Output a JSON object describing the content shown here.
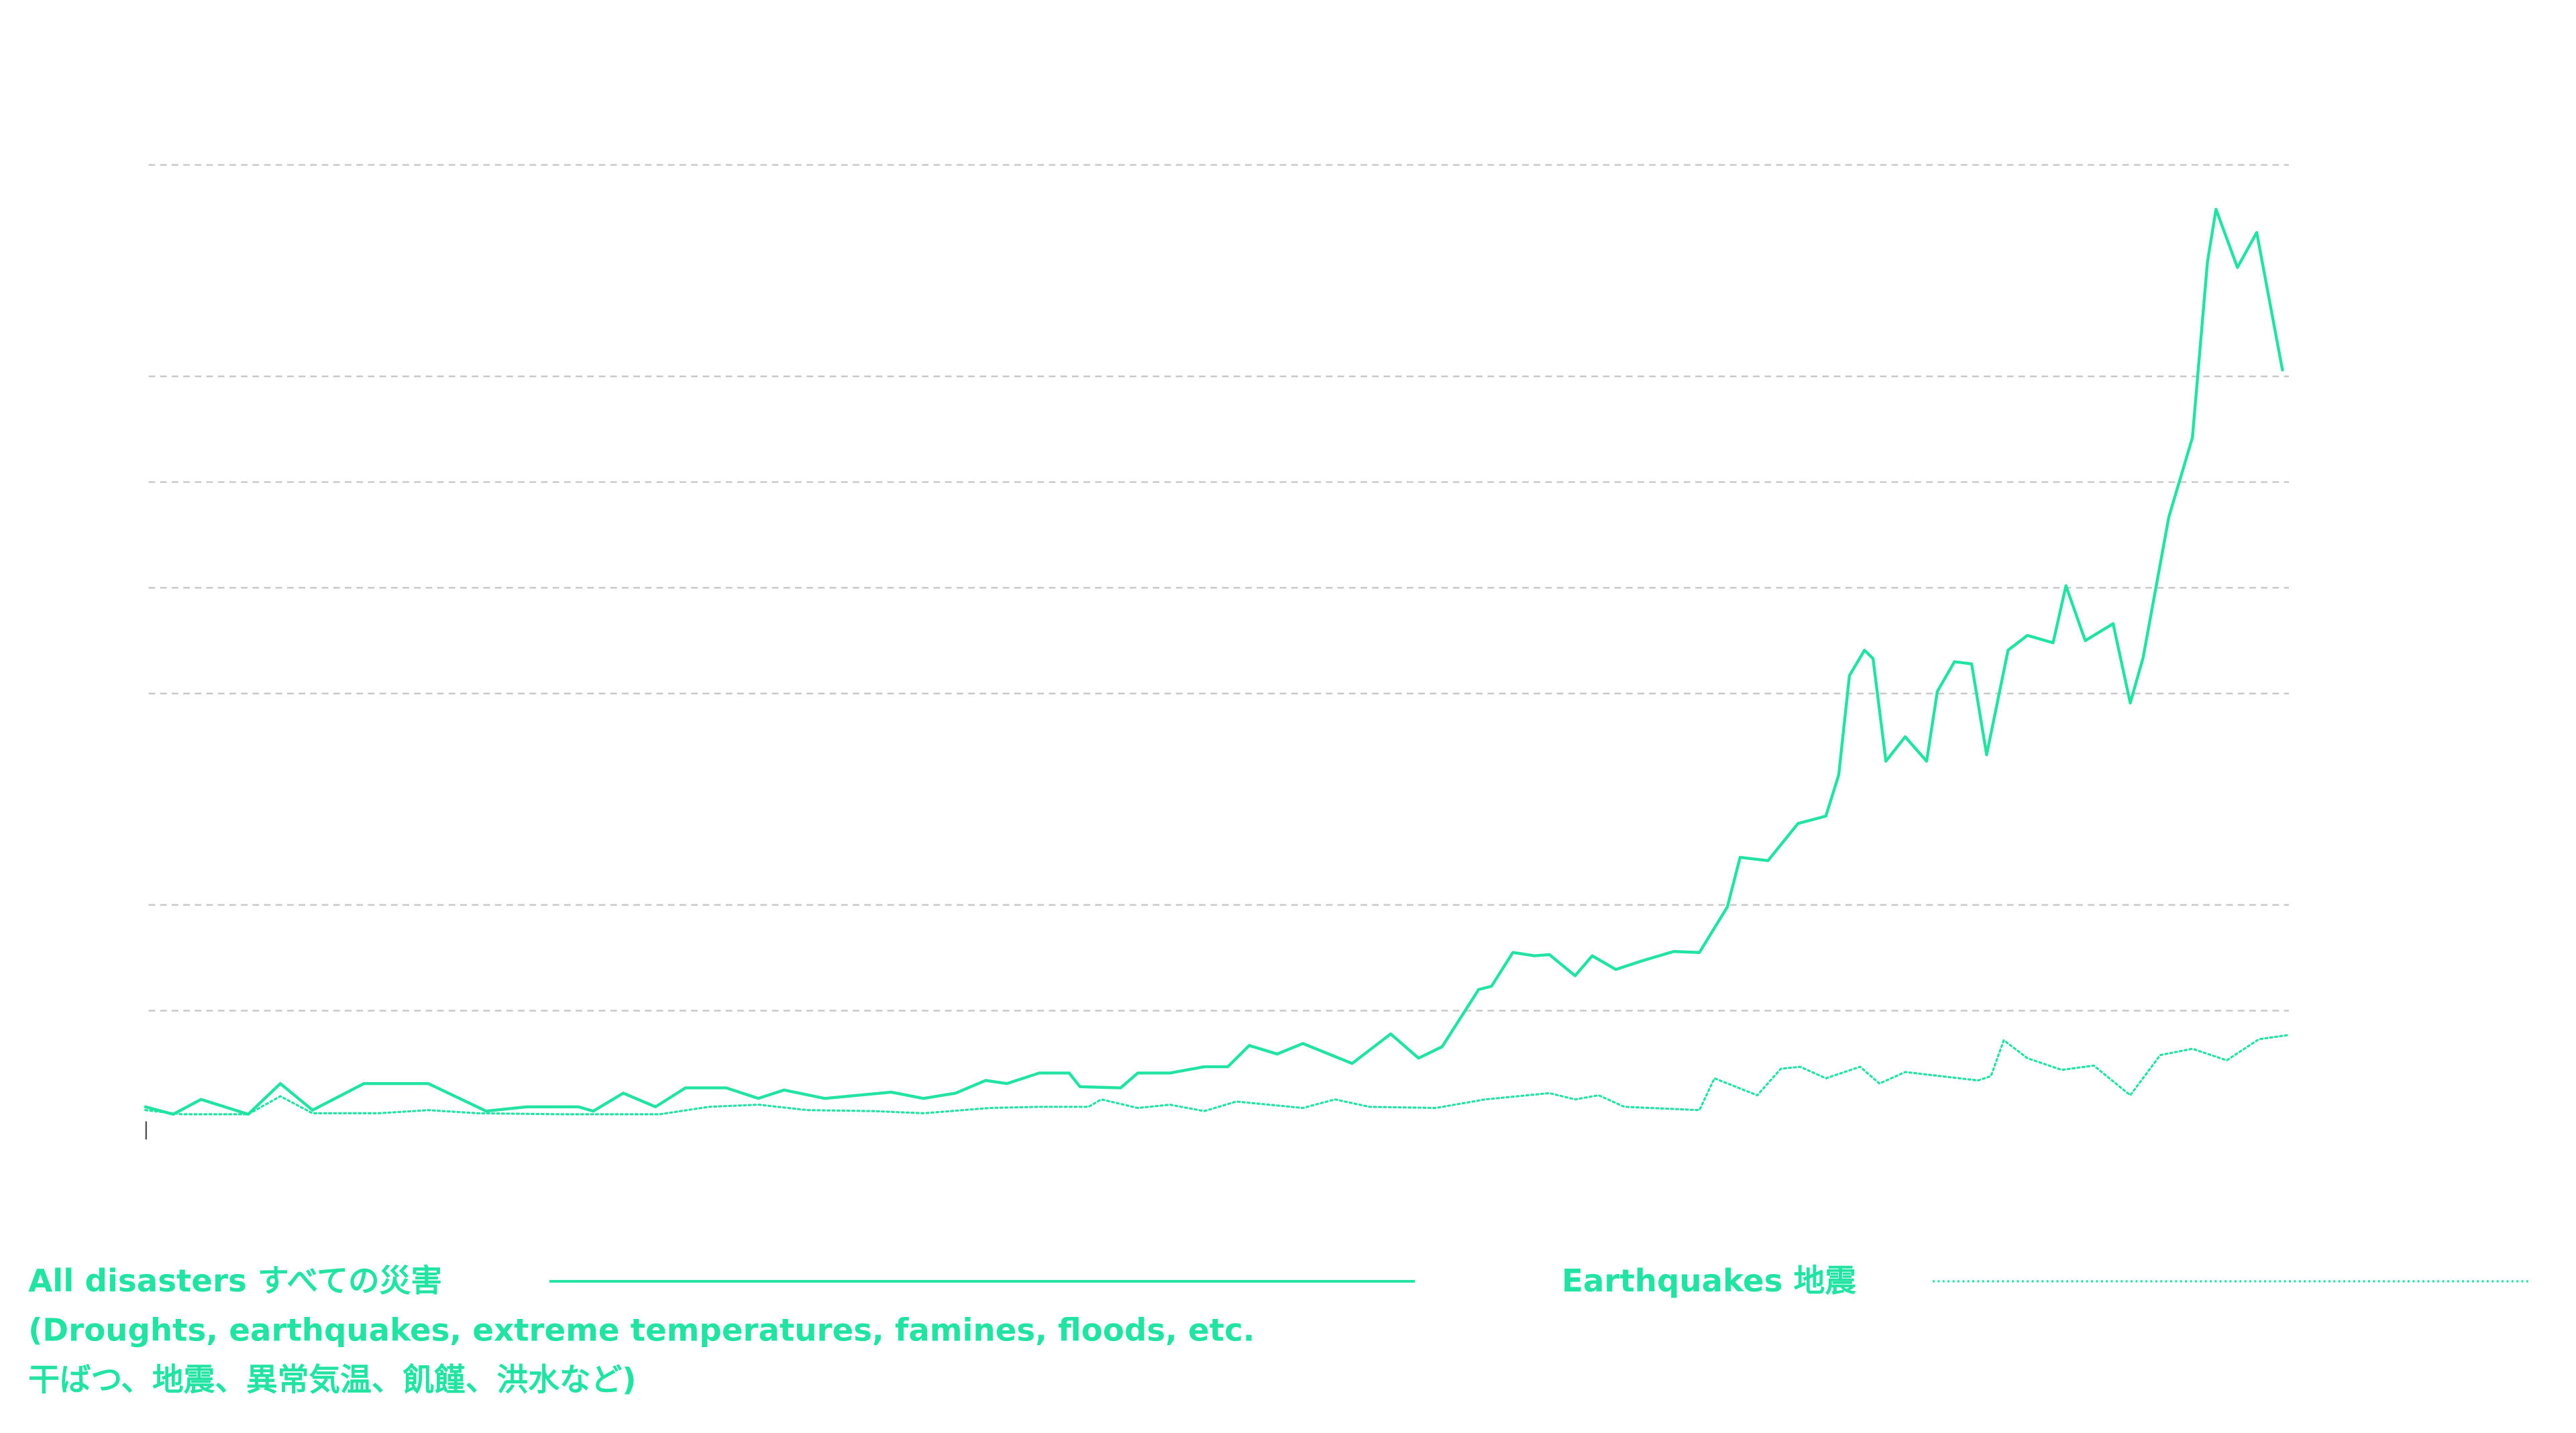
{
  "chart_data": {
    "type": "line",
    "legend": "bottom",
    "grid": true,
    "xlim": [
      0,
      100
    ],
    "ylim": [
      0,
      9
    ],
    "yticks": [
      1,
      2,
      4,
      5,
      6,
      7,
      9
    ],
    "legend_note": [
      "(Droughts, earthquakes, extreme temperatures, famines, floods, etc.",
      "干ばつ、地震、異常気温、飢饉、洪水など)"
    ],
    "series": [
      {
        "name": "All disasters すべての災害",
        "color": "#22e3a2",
        "style": "solid",
        "x": [
          0,
          1.3,
          2.6,
          4.8,
          6.3,
          7.8,
          10.2,
          13.2,
          15.9,
          17.8,
          20.2,
          20.9,
          22.3,
          23.8,
          25.2,
          27.1,
          28.6,
          29.8,
          31.7,
          34.8,
          36.3,
          37.8,
          39.2,
          40.2,
          41.7,
          43.1,
          43.6,
          45.5,
          46.3,
          47.8,
          49.4,
          50.5,
          51.5,
          52.8,
          54.0,
          56.3,
          58.1,
          59.4,
          60.5,
          62.2,
          62.8,
          63.8,
          64.8,
          65.5,
          66.7,
          67.5,
          68.6,
          69.8,
          71.3,
          72.5,
          73.8,
          74.4,
          75.7,
          77.1,
          78.4,
          79.0,
          79.5,
          80.2,
          80.6,
          81.2,
          82.1,
          83.1,
          83.6,
          84.4,
          85.2,
          85.9,
          86.9,
          87.8,
          89.0,
          89.6,
          90.5,
          91.8,
          92.6,
          93.2,
          94.4,
          95.5,
          96.2,
          96.6,
          97.6,
          98.5,
          99.7
        ],
        "values": [
          0.09,
          0.02,
          0.16,
          0.02,
          0.31,
          0.06,
          0.31,
          0.31,
          0.05,
          0.09,
          0.09,
          0.05,
          0.22,
          0.09,
          0.27,
          0.27,
          0.17,
          0.25,
          0.17,
          0.23,
          0.17,
          0.22,
          0.34,
          0.31,
          0.41,
          0.41,
          0.28,
          0.27,
          0.41,
          0.41,
          0.47,
          0.47,
          0.67,
          0.59,
          0.69,
          0.5,
          0.78,
          0.55,
          0.66,
          1.2,
          1.23,
          1.55,
          1.52,
          1.53,
          1.33,
          1.52,
          1.39,
          1.47,
          1.56,
          1.55,
          1.98,
          2.45,
          2.42,
          2.77,
          2.84,
          3.23,
          4.17,
          4.41,
          4.33,
          3.36,
          3.59,
          3.36,
          4.02,
          4.3,
          4.28,
          3.42,
          4.41,
          4.55,
          4.48,
          5.02,
          4.5,
          4.66,
          3.91,
          4.34,
          5.67,
          6.42,
          8.08,
          8.58,
          8.03,
          8.36,
          7.06
        ]
      },
      {
        "name": "Earthquakes 地震",
        "color": "#22e3a2",
        "style": "dotted",
        "x": [
          0,
          1.7,
          4.8,
          6.3,
          7.8,
          10.9,
          13.2,
          15.5,
          19.4,
          24.0,
          26.3,
          28.6,
          30.9,
          34.0,
          36.3,
          39.4,
          41.7,
          44.0,
          44.6,
          46.3,
          47.8,
          49.4,
          50.9,
          54.0,
          55.5,
          57.1,
          60.2,
          62.5,
          65.5,
          66.7,
          67.8,
          69.0,
          72.5,
          73.2,
          75.2,
          76.3,
          77.2,
          78.4,
          80.0,
          80.9,
          82.1,
          85.5,
          86.1,
          86.7,
          87.8,
          89.4,
          90.9,
          92.6,
          94.0,
          95.5,
          97.1,
          98.6,
          100
        ],
        "values": [
          0.06,
          0.02,
          0.02,
          0.19,
          0.03,
          0.03,
          0.06,
          0.03,
          0.02,
          0.02,
          0.09,
          0.11,
          0.06,
          0.05,
          0.03,
          0.08,
          0.09,
          0.09,
          0.16,
          0.08,
          0.11,
          0.05,
          0.14,
          0.08,
          0.16,
          0.09,
          0.08,
          0.16,
          0.22,
          0.16,
          0.2,
          0.09,
          0.06,
          0.36,
          0.2,
          0.45,
          0.47,
          0.36,
          0.47,
          0.31,
          0.42,
          0.34,
          0.38,
          0.72,
          0.55,
          0.44,
          0.48,
          0.2,
          0.58,
          0.64,
          0.53,
          0.73,
          0.77
        ]
      }
    ]
  }
}
